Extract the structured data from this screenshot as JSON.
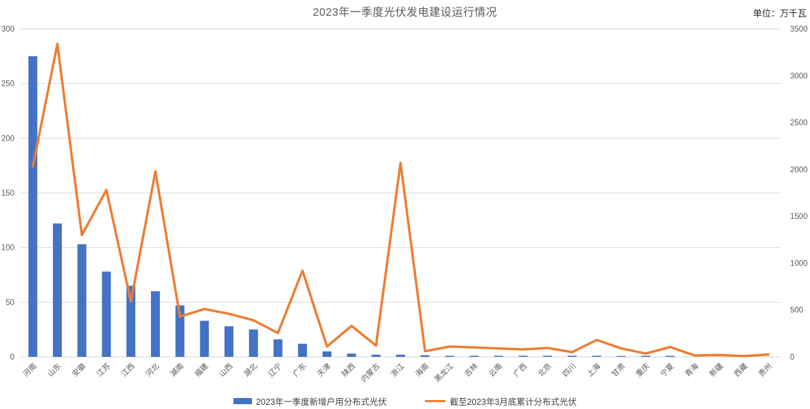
{
  "title": "2023年一季度光伏发电建设运行情况",
  "unit_label": "单位：万千瓦",
  "axis_artifact": ")",
  "legend": {
    "bar_label": "2023年一季度新增户用分布式光伏",
    "line_label": "截至2023年3月底累计分布式光伏"
  },
  "colors": {
    "bar": "#4472C4",
    "line": "#ED7D31",
    "gridline": "#D9D9D9",
    "baseline": "#D0D0D0",
    "axis_text": "#595959",
    "title_text": "#595959"
  },
  "chart_data": {
    "type": "bar",
    "subtype": "bar-line-combo",
    "title": "2023年一季度光伏发电建设运行情况",
    "unit": "万千瓦",
    "grid": true,
    "legend_position": "bottom",
    "categories": [
      "河南",
      "山东",
      "安徽",
      "江苏",
      "江西",
      "河北",
      "湖南",
      "福建",
      "山西",
      "湖北",
      "辽宁",
      "广东",
      "天津",
      "陕西",
      "内蒙古",
      "浙江",
      "海南",
      "黑龙江",
      "吉林",
      "云南",
      "广西",
      "北京",
      "四川",
      "上海",
      "甘肃",
      "重庆",
      "宁夏",
      "青海",
      "新疆",
      "西藏",
      "贵州"
    ],
    "series": [
      {
        "name": "2023年一季度新增户用分布式光伏",
        "type": "bar",
        "axis": "left",
        "values": [
          275,
          122,
          103,
          78,
          65,
          60,
          47,
          33,
          28,
          25,
          16,
          12,
          5,
          3,
          2,
          2,
          1.5,
          1,
          1,
          1,
          1,
          1,
          1,
          1,
          0.8,
          1,
          1,
          0,
          0,
          0,
          0
        ]
      },
      {
        "name": "截至2023年3月底累计分布式光伏",
        "type": "line",
        "axis": "right",
        "values": [
          2030,
          3340,
          1300,
          1780,
          590,
          1980,
          430,
          510,
          460,
          390,
          255,
          920,
          110,
          330,
          120,
          2070,
          60,
          110,
          100,
          90,
          80,
          95,
          50,
          180,
          90,
          35,
          105,
          15,
          20,
          8,
          25
        ]
      }
    ],
    "left_axis": {
      "range": [
        0,
        300
      ],
      "ticks": [
        0,
        50,
        100,
        150,
        200,
        250,
        300
      ]
    },
    "right_axis": {
      "range": [
        0,
        3500
      ],
      "ticks": [
        0,
        500,
        1000,
        1500,
        2000,
        2500,
        3000,
        3500
      ]
    }
  }
}
